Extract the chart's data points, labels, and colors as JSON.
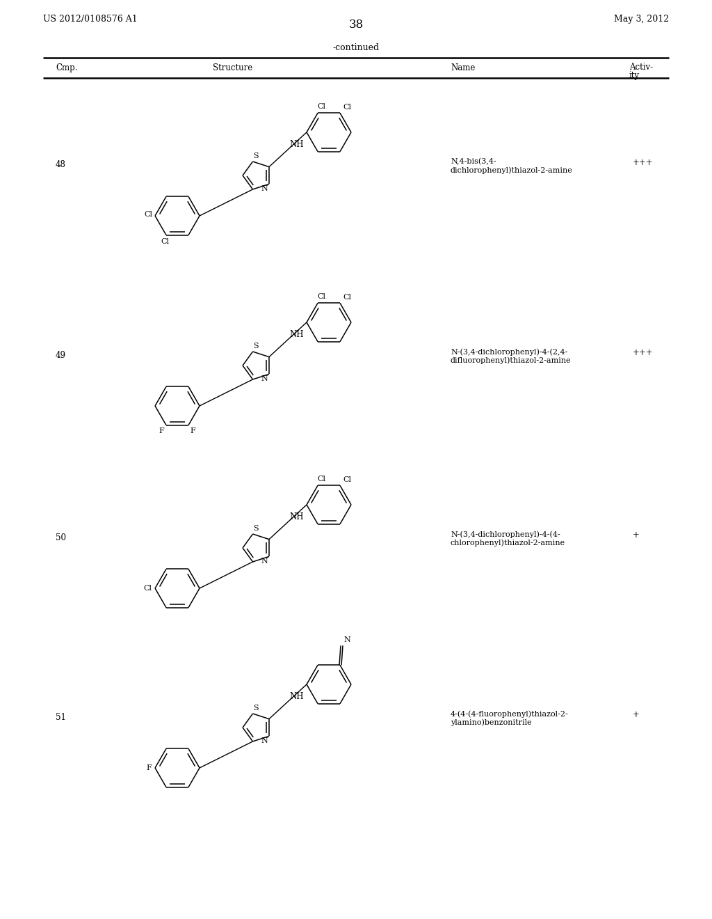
{
  "page_number": "38",
  "patent_number": "US 2012/0108576 A1",
  "patent_date": "May 3, 2012",
  "continued_label": "-continued",
  "compounds": [
    {
      "id": "48",
      "name": "N,4-bis(3,4-\ndichlorophenyl)thiazol-2-amine",
      "activity": "+++"
    },
    {
      "id": "49",
      "name": "N-(3,4-dichlorophenyl)-4-(2,4-\ndifluorophenyl)thiazol-2-amine",
      "activity": "+++"
    },
    {
      "id": "50",
      "name": "N-(3,4-dichlorophenyl)-4-(4-\nchlorophenyl)thiazol-2-amine",
      "activity": "+"
    },
    {
      "id": "51",
      "name": "4-(4-(4-fluorophenyl)thiazol-2-\nylamino)benzonitrile",
      "activity": "+"
    }
  ],
  "bg_color": "#ffffff",
  "text_color": "#000000"
}
